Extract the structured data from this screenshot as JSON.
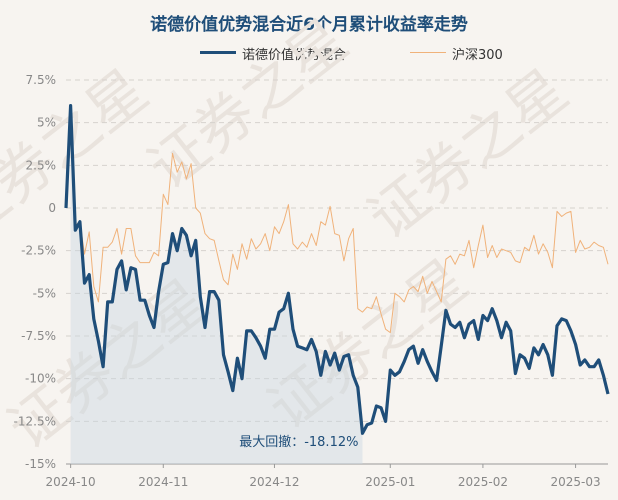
{
  "chart_data": {
    "type": "line",
    "title": "诺德价值优势混合近6个月累计收益率走势",
    "ylim": [
      -15,
      7.5
    ],
    "y_ticks": [
      "7.5%",
      "5%",
      "2.5%",
      "0",
      "-2.5%",
      "-5%",
      "-7.5%",
      "-10%",
      "-12.5%",
      "-15%"
    ],
    "x_ticks": [
      "2024-10",
      "2024-11",
      "2024-12",
      "2025-01",
      "2025-02",
      "2025-03"
    ],
    "x_tick_index": [
      1,
      21,
      45,
      70,
      90,
      110
    ],
    "grid": true,
    "legend_position": "top",
    "series": [
      {
        "name": "诺德价值优势混合",
        "color": "#1f4e79",
        "values": [
          0,
          6.0,
          -1.3,
          -0.8,
          -4.4,
          -3.9,
          -6.5,
          -7.8,
          -9.3,
          -5.5,
          -5.5,
          -3.6,
          -3.1,
          -4.8,
          -3.5,
          -3.6,
          -5.4,
          -5.4,
          -6.3,
          -7.0,
          -4.9,
          -3.3,
          -3.2,
          -1.5,
          -2.5,
          -1.2,
          -1.6,
          -2.8,
          -1.9,
          -5.2,
          -7.0,
          -4.9,
          -4.9,
          -5.4,
          -8.6,
          -9.6,
          -10.7,
          -8.8,
          -10.0,
          -7.2,
          -7.2,
          -7.6,
          -8.1,
          -8.8,
          -7.1,
          -7.1,
          -6.1,
          -5.9,
          -5.0,
          -7.1,
          -8.1,
          -8.2,
          -8.3,
          -7.7,
          -8.4,
          -9.8,
          -8.4,
          -9.2,
          -8.5,
          -9.5,
          -8.7,
          -8.6,
          -9.8,
          -10.5,
          -13.2,
          -12.7,
          -12.6,
          -11.6,
          -11.7,
          -12.5,
          -9.5,
          -9.8,
          -9.6,
          -9.0,
          -8.3,
          -8.1,
          -9.1,
          -8.3,
          -9.0,
          -9.6,
          -10.1,
          -8.1,
          -6.0,
          -6.8,
          -7.0,
          -6.7,
          -7.6,
          -6.8,
          -6.6,
          -7.7,
          -6.3,
          -6.6,
          -5.9,
          -6.6,
          -7.6,
          -6.7,
          -7.2,
          -9.7,
          -8.6,
          -8.8,
          -9.4,
          -8.2,
          -8.6,
          -8.0,
          -8.6,
          -9.8,
          -6.9,
          -6.5,
          -6.6,
          -7.2,
          -8.0,
          -9.2,
          -8.9,
          -9.3,
          -9.3,
          -8.9,
          -9.8,
          -10.9
        ],
        "annotation": {
          "text": "最大回撤：-18.12%"
        }
      },
      {
        "name": "沪深300",
        "color": "#f0b27a",
        "values": [
          0,
          5.0,
          -1.0,
          -0.8,
          -2.7,
          -1.4,
          -4.6,
          -5.5,
          -2.3,
          -2.3,
          -2.0,
          -1.2,
          -2.7,
          -1.2,
          -1.2,
          -2.8,
          -3.2,
          -3.2,
          -3.2,
          -2.6,
          -2.8,
          0.8,
          0.2,
          3.2,
          2.1,
          2.7,
          1.7,
          2.6,
          0.0,
          -0.3,
          -1.5,
          -1.8,
          -1.9,
          -3.1,
          -4.2,
          -4.5,
          -2.7,
          -3.6,
          -2.1,
          -3.0,
          -1.8,
          -2.4,
          -2.1,
          -1.5,
          -2.5,
          -1.1,
          -1.5,
          -0.8,
          0.2,
          -2.1,
          -2.4,
          -2.0,
          -2.3,
          -1.5,
          -2.2,
          -0.8,
          -1.0,
          0.1,
          -1.5,
          -1.6,
          -3.1,
          -1.8,
          -1.2,
          -5.9,
          -6.1,
          -5.8,
          -5.9,
          -5.2,
          -6.2,
          -7.1,
          -7.3,
          -5.0,
          -5.2,
          -5.5,
          -4.8,
          -4.6,
          -4.9,
          -4.0,
          -5.0,
          -4.3,
          -4.9,
          -5.5,
          -3.0,
          -2.8,
          -3.3,
          -2.7,
          -2.8,
          -1.9,
          -3.5,
          -2.2,
          -1.0,
          -2.9,
          -2.2,
          -2.9,
          -2.4,
          -2.5,
          -2.6,
          -3.1,
          -3.2,
          -2.3,
          -2.5,
          -1.6,
          -2.7,
          -2.1,
          -2.6,
          -3.5,
          -0.2,
          -0.5,
          -0.3,
          -0.2,
          -2.6,
          -1.9,
          -2.4,
          -2.3,
          -2.0,
          -2.2,
          -2.3,
          -3.3
        ]
      }
    ]
  }
}
